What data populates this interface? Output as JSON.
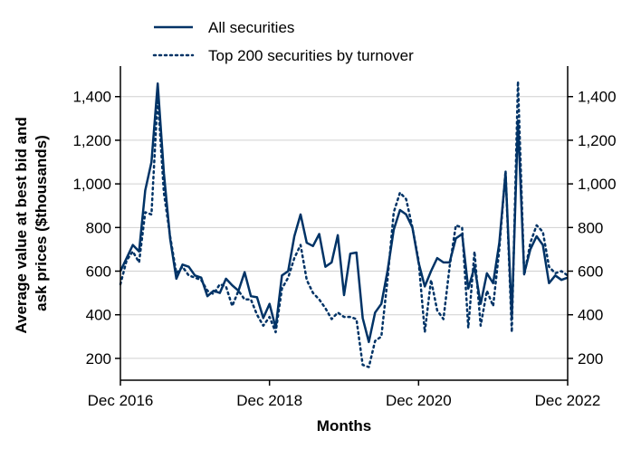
{
  "chart_data": {
    "type": "line",
    "xlabel": "Months",
    "ylabel": "Average value at best bid and ask prices ($thousands)",
    "ylim": [
      100,
      1540
    ],
    "yticks": [
      200,
      400,
      600,
      800,
      1000,
      1200,
      1400
    ],
    "ytick_labels": [
      "200",
      "400",
      "600",
      "800",
      "1,000",
      "1,200",
      "1,400"
    ],
    "x_range": [
      "2016-12",
      "2022-12"
    ],
    "xticks": [
      "2016-12",
      "2018-12",
      "2020-12",
      "2022-12"
    ],
    "xtick_labels": [
      "Dec 2016",
      "Dec 2018",
      "Dec 2020",
      "Dec 2022"
    ],
    "grid": "horizontal",
    "right_axis": "mirrors left axis",
    "legend_position": "top",
    "colors": {
      "series": "#003366",
      "grid": "#d0d0d0",
      "axis": "#000000"
    },
    "x": [
      "2016-12",
      "2017-01",
      "2017-02",
      "2017-03",
      "2017-04",
      "2017-05",
      "2017-06",
      "2017-07",
      "2017-08",
      "2017-09",
      "2017-10",
      "2017-11",
      "2017-12",
      "2018-01",
      "2018-02",
      "2018-03",
      "2018-04",
      "2018-05",
      "2018-06",
      "2018-07",
      "2018-08",
      "2018-09",
      "2018-10",
      "2018-11",
      "2018-12",
      "2019-01",
      "2019-02",
      "2019-03",
      "2019-04",
      "2019-05",
      "2019-06",
      "2019-07",
      "2019-08",
      "2019-09",
      "2019-10",
      "2019-11",
      "2019-12",
      "2020-01",
      "2020-02",
      "2020-03",
      "2020-04",
      "2020-05",
      "2020-06",
      "2020-07",
      "2020-08",
      "2020-09",
      "2020-10",
      "2020-11",
      "2020-12",
      "2021-01",
      "2021-02",
      "2021-03",
      "2021-04",
      "2021-05",
      "2021-06",
      "2021-07",
      "2021-08",
      "2021-09",
      "2021-10",
      "2021-11",
      "2021-12",
      "2022-01",
      "2022-02",
      "2022-03",
      "2022-04",
      "2022-05",
      "2022-06",
      "2022-07",
      "2022-08",
      "2022-09",
      "2022-10",
      "2022-11",
      "2022-12"
    ],
    "series": [
      {
        "name": "All securities",
        "style": "solid",
        "values": [
          600,
          660,
          720,
          690,
          970,
          1100,
          1460,
          1050,
          750,
          565,
          630,
          620,
          580,
          570,
          485,
          510,
          500,
          565,
          535,
          510,
          595,
          485,
          480,
          385,
          450,
          340,
          580,
          600,
          760,
          860,
          730,
          715,
          770,
          620,
          640,
          765,
          490,
          680,
          685,
          385,
          275,
          410,
          450,
          600,
          790,
          880,
          860,
          800,
          640,
          530,
          600,
          660,
          640,
          640,
          750,
          770,
          520,
          620,
          450,
          590,
          545,
          730,
          1050,
          390,
          1290,
          590,
          700,
          760,
          720,
          545,
          580,
          560,
          570
        ]
      },
      {
        "name": "Top 200 securities by turnover",
        "style": "dotted",
        "values": [
          540,
          650,
          690,
          640,
          870,
          860,
          1400,
          960,
          760,
          590,
          620,
          580,
          570,
          560,
          510,
          495,
          540,
          530,
          440,
          510,
          470,
          470,
          400,
          350,
          390,
          320,
          520,
          570,
          660,
          720,
          560,
          500,
          470,
          430,
          380,
          410,
          390,
          390,
          380,
          170,
          160,
          280,
          300,
          560,
          870,
          960,
          930,
          800,
          650,
          320,
          560,
          420,
          380,
          620,
          810,
          800,
          340,
          690,
          350,
          510,
          440,
          700,
          1060,
          320,
          1470,
          580,
          730,
          810,
          780,
          620,
          590,
          600,
          580
        ]
      }
    ]
  }
}
